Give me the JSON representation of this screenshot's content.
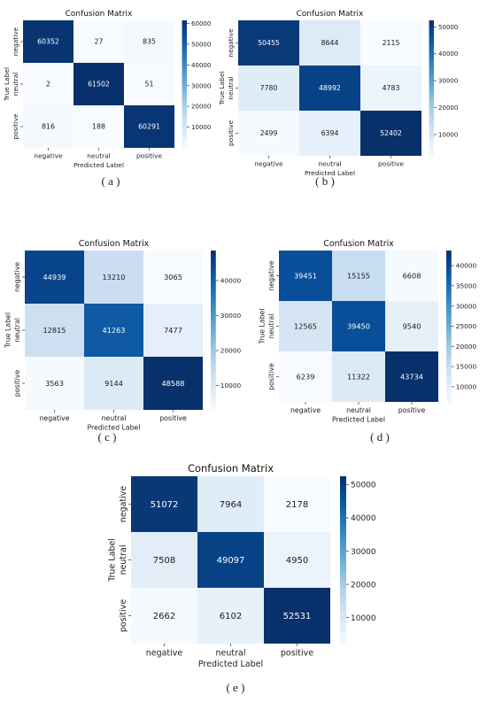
{
  "captions": [
    "( a )",
    "( b )",
    "( c )",
    "( d )",
    "( e )"
  ],
  "chart_data": [
    {
      "type": "heatmap",
      "title": "Confusion Matrix",
      "xlabel": "Predicted Label",
      "ylabel": "True Label",
      "x_categories": [
        "negative",
        "neutral",
        "positive"
      ],
      "y_categories": [
        "negative",
        "neutral",
        "positive"
      ],
      "values": [
        [
          60352,
          27,
          835
        ],
        [
          2,
          61502,
          51
        ],
        [
          816,
          188,
          60291
        ]
      ],
      "colorbar": {
        "min": 0,
        "max": 61502,
        "ticks": [
          10000,
          20000,
          30000,
          40000,
          50000,
          60000
        ]
      },
      "colormap": "Blues"
    },
    {
      "type": "heatmap",
      "title": "Confusion Matrix",
      "xlabel": "Predicted Label",
      "ylabel": "True Label",
      "x_categories": [
        "negative",
        "neutral",
        "positive"
      ],
      "y_categories": [
        "negative",
        "neutral",
        "positive"
      ],
      "values": [
        [
          50455,
          8644,
          2115
        ],
        [
          7780,
          48992,
          4783
        ],
        [
          2499,
          6394,
          52402
        ]
      ],
      "colorbar": {
        "min": 2115,
        "max": 52402,
        "ticks": [
          10000,
          20000,
          30000,
          40000,
          50000
        ]
      },
      "colormap": "Blues"
    },
    {
      "type": "heatmap",
      "title": "Confusion Matrix",
      "xlabel": "Predicted Label",
      "ylabel": "True Label",
      "x_categories": [
        "negative",
        "neutral",
        "positive"
      ],
      "y_categories": [
        "negative",
        "neutral",
        "positive"
      ],
      "values": [
        [
          44939,
          13210,
          3065
        ],
        [
          12815,
          41263,
          7477
        ],
        [
          3563,
          9144,
          48588
        ]
      ],
      "colorbar": {
        "min": 3065,
        "max": 48588,
        "ticks": [
          10000,
          20000,
          30000,
          40000
        ]
      },
      "colormap": "Blues"
    },
    {
      "type": "heatmap",
      "title": "Confusion Matrix",
      "xlabel": "Predicted Label",
      "ylabel": "True Label",
      "x_categories": [
        "negative",
        "neutral",
        "positive"
      ],
      "y_categories": [
        "negative",
        "neutral",
        "positive"
      ],
      "values": [
        [
          39451,
          15155,
          6608
        ],
        [
          12565,
          39450,
          9540
        ],
        [
          6239,
          11322,
          43734
        ]
      ],
      "colorbar": {
        "min": 6239,
        "max": 43734,
        "ticks": [
          10000,
          15000,
          20000,
          25000,
          30000,
          35000,
          40000
        ]
      },
      "colormap": "Blues"
    },
    {
      "type": "heatmap",
      "title": "Confusion Matrix",
      "xlabel": "Predicted Label",
      "ylabel": "True Label",
      "x_categories": [
        "negative",
        "neutral",
        "positive"
      ],
      "y_categories": [
        "negative",
        "neutral",
        "positive"
      ],
      "values": [
        [
          51072,
          7964,
          2178
        ],
        [
          7508,
          49097,
          4950
        ],
        [
          2662,
          6102,
          52531
        ]
      ],
      "colorbar": {
        "min": 2178,
        "max": 52531,
        "ticks": [
          10000,
          20000,
          30000,
          40000,
          50000
        ]
      },
      "colormap": "Blues"
    }
  ]
}
